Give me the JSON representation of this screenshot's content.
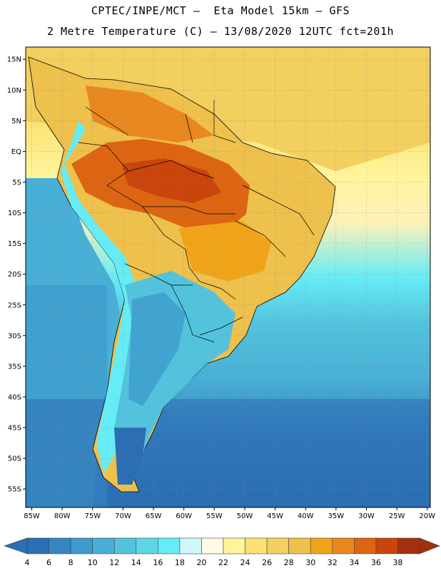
{
  "header": {
    "title_line1": "CPTEC/INPE/MCT –  Eta Model 15km – GFS",
    "title_line2": "2 Metre Temperature (C) – 13/08/2020 12UTC fct=201h"
  },
  "map": {
    "lon_labels": [
      "85W",
      "80W",
      "75W",
      "70W",
      "65W",
      "60W",
      "55W",
      "50W",
      "45W",
      "40W",
      "35W",
      "30W",
      "25W",
      "20W"
    ],
    "lat_labels": [
      "15N",
      "10N",
      "5N",
      "EQ",
      "5S",
      "10S",
      "15S",
      "20S",
      "25S",
      "30S",
      "35S",
      "40S",
      "45S",
      "50S",
      "55S"
    ],
    "lon_range": [
      -86,
      -19.5
    ],
    "lat_range": [
      17,
      -58
    ]
  },
  "colorbar": {
    "labels": [
      "4",
      "6",
      "8",
      "10",
      "12",
      "14",
      "16",
      "18",
      "20",
      "22",
      "24",
      "26",
      "28",
      "30",
      "32",
      "34",
      "36",
      "38"
    ],
    "colors": [
      "#2c6eb3",
      "#3584c3",
      "#3d9bcd",
      "#49afd6",
      "#53c3dd",
      "#5dd7e5",
      "#66ecf6",
      "#cff7fb",
      "#fffbe7",
      "#fef59b",
      "#f9e273",
      "#f3cf5f",
      "#eec04c",
      "#f0a41a",
      "#e8881f",
      "#dc6512",
      "#c9450c",
      "#a2300e"
    ]
  }
}
